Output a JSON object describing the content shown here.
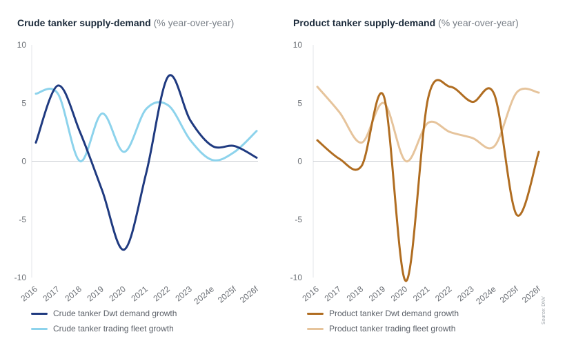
{
  "chart_data": [
    {
      "type": "line",
      "title": "Crude tanker supply-demand",
      "subtitle": "(% year-over-year)",
      "categories": [
        "2016",
        "2017",
        "2018",
        "2019",
        "2020",
        "2021",
        "2022",
        "2023",
        "2024e",
        "2025f",
        "2026f"
      ],
      "ylim": [
        -10,
        10
      ],
      "yticks": [
        "10",
        "5",
        "0",
        "-5",
        "-10"
      ],
      "series": [
        {
          "name": "Crude tanker Dwt demand growth",
          "color": "#1f3a80",
          "values": [
            1.6,
            6.5,
            2.5,
            -2.5,
            -7.6,
            -1.0,
            7.3,
            3.5,
            1.3,
            1.3,
            0.3
          ]
        },
        {
          "name": "Crude tanker trading fleet growth",
          "color": "#8dd3ec",
          "values": [
            5.8,
            5.8,
            0.0,
            4.1,
            0.8,
            4.5,
            4.8,
            1.8,
            0.1,
            0.8,
            2.6
          ]
        }
      ]
    },
    {
      "type": "line",
      "title": "Product tanker supply-demand",
      "subtitle": "(% year-over-year)",
      "categories": [
        "2016",
        "2017",
        "2018",
        "2019",
        "2020",
        "2021",
        "2022",
        "2023",
        "2024e",
        "2025f",
        "2026f"
      ],
      "ylim": [
        -10,
        10
      ],
      "yticks": [
        "10",
        "5",
        "0",
        "-5",
        "-10"
      ],
      "series": [
        {
          "name": "Product tanker Dwt demand growth",
          "color": "#b06d21",
          "values": [
            1.8,
            0.2,
            -0.4,
            5.6,
            -10.3,
            5.4,
            6.4,
            5.1,
            5.7,
            -4.6,
            0.8
          ]
        },
        {
          "name": "Product tanker trading fleet growth",
          "color": "#e6c49c",
          "values": [
            6.4,
            4.2,
            1.6,
            5.0,
            0.0,
            3.3,
            2.5,
            2.0,
            1.3,
            5.9,
            5.9
          ]
        }
      ]
    }
  ],
  "source": "Source: DNV"
}
